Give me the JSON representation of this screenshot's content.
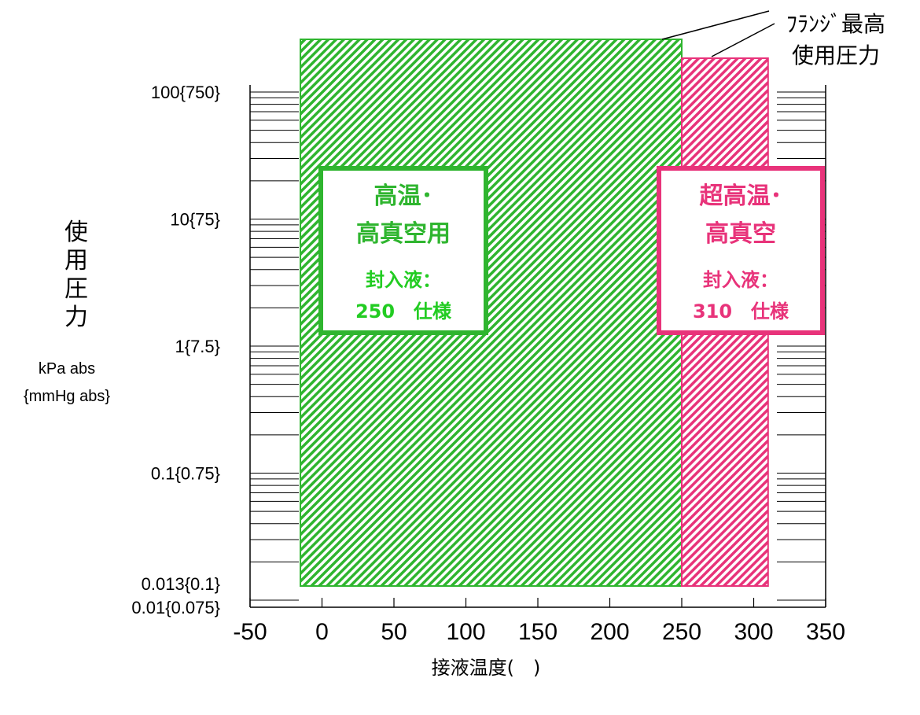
{
  "chart_data": {
    "type": "area",
    "title": "",
    "xlabel": "接液温度(　)",
    "ylabel": "使用圧力",
    "yunit": "kPa abs",
    "yunit_alt": "{mmHg abs}",
    "x_ticks": [
      -50,
      0,
      50,
      100,
      150,
      200,
      250,
      300,
      350
    ],
    "y_scale": "log",
    "y_ticks": [
      {
        "value": 100,
        "label": "100{750}"
      },
      {
        "value": 10,
        "label": "10{75}"
      },
      {
        "value": 1,
        "label": "1{7.5}"
      },
      {
        "value": 0.1,
        "label": "0.1{0.75}"
      },
      {
        "value": 0.013,
        "label": "0.013{0.1}"
      },
      {
        "value": 0.01,
        "label": "0.01{0.075}"
      }
    ],
    "xlim": [
      -50,
      350
    ],
    "ylim": [
      0.01,
      180
    ],
    "grid": false,
    "series": [
      {
        "name": "高温・高真空用",
        "x_range": [
          -15,
          250
        ],
        "y_range": [
          0.013,
          150
        ],
        "color": "#2fb52f",
        "label_lines": [
          "高温･",
          "高真空用"
        ],
        "sub_lines": [
          "封入液：",
          "250　仕様"
        ]
      },
      {
        "name": "超高温・高真空",
        "x_range": [
          250,
          310
        ],
        "y_range": [
          0.013,
          110
        ],
        "color": "#e8337a",
        "label_lines": [
          "超高温･",
          "高真空"
        ],
        "sub_lines": [
          "封入液：",
          "310　仕様"
        ]
      }
    ],
    "annotation": {
      "lines": [
        "ﾌﾗﾝｼﾞ最高",
        "使用圧力"
      ]
    }
  }
}
